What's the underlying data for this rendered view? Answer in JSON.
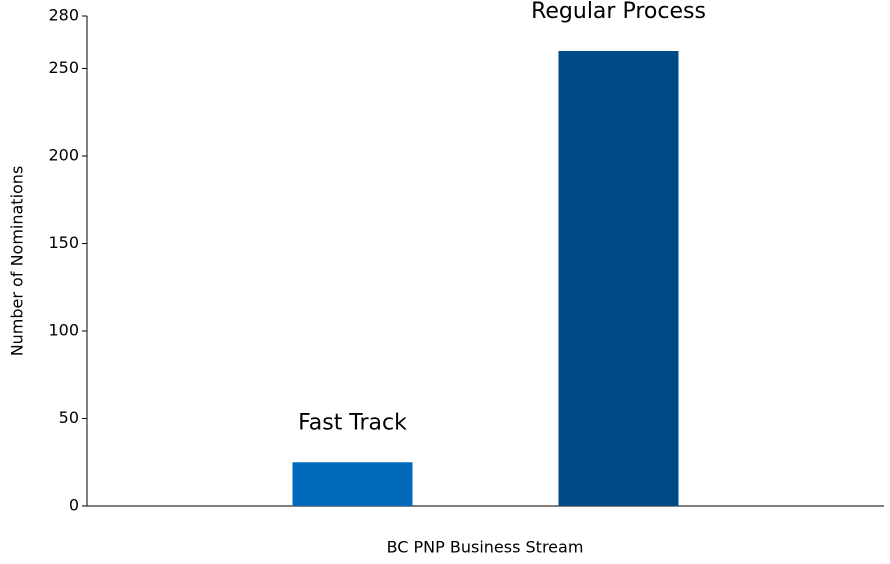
{
  "chart_data": {
    "type": "bar",
    "x_label": "BC PNP Business Stream",
    "y_label": "Number of Nominations",
    "categories": [
      "Fast Track",
      "Regular Process"
    ],
    "values": [
      25,
      260
    ],
    "colors": [
      "#0068b8",
      "#004b87"
    ],
    "ylim": [
      0,
      280
    ],
    "yticks": [
      0,
      50,
      100,
      150,
      200,
      250,
      280
    ],
    "grid": false
  }
}
